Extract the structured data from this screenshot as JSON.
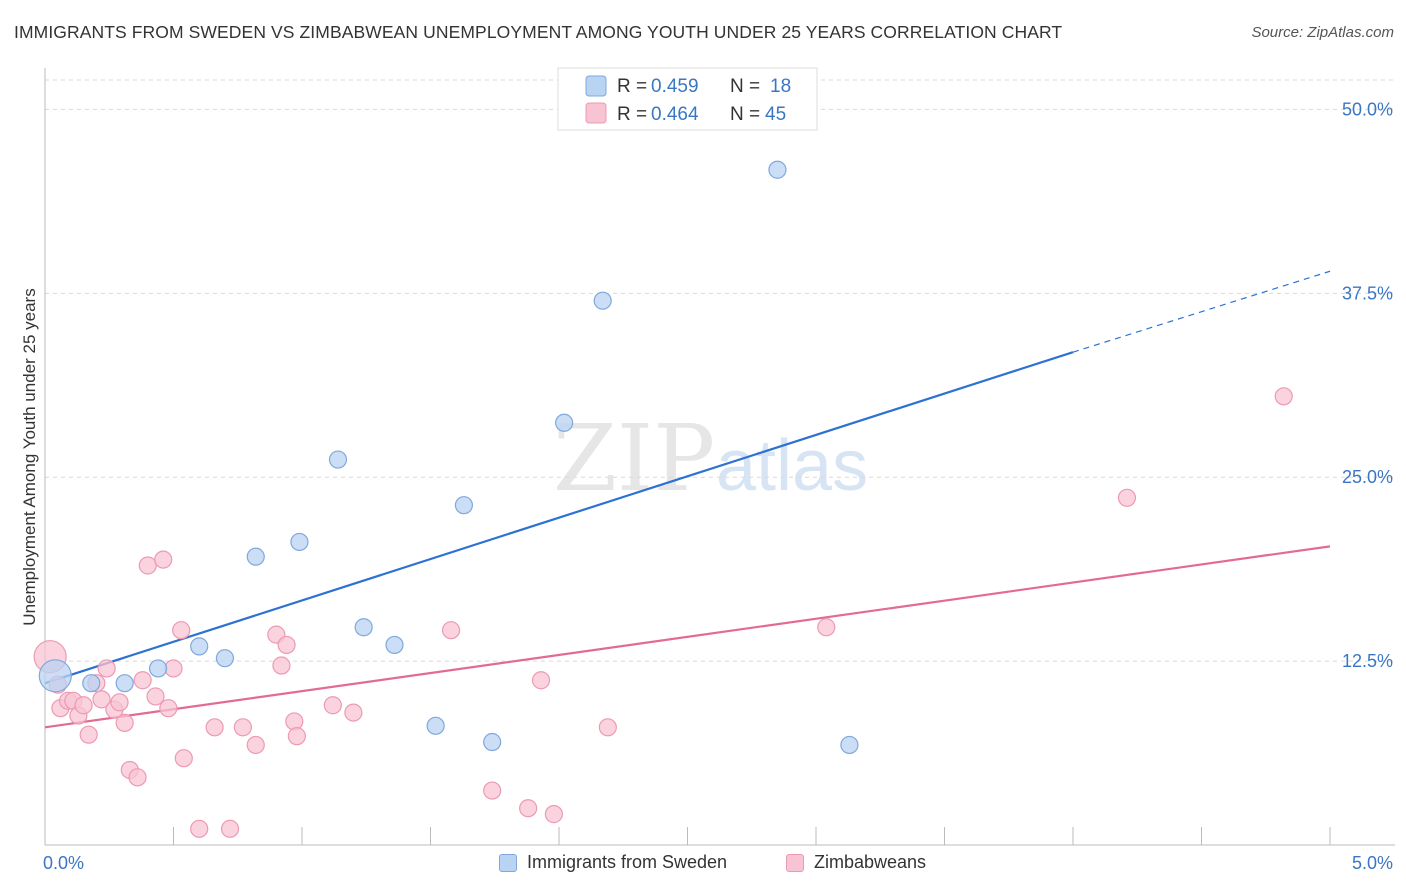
{
  "title": "IMMIGRANTS FROM SWEDEN VS ZIMBABWEAN UNEMPLOYMENT AMONG YOUTH UNDER 25 YEARS CORRELATION CHART",
  "source": "Source: ZipAtlas.com",
  "watermark": {
    "zip": "ZIP",
    "atlas": "atlas"
  },
  "colors": {
    "blue_fill": "#b9d3f3",
    "blue_stroke": "#7fa8dc",
    "blue_line": "#2d72d2",
    "pink_fill": "#f8c4d3",
    "pink_stroke": "#ec9ab4",
    "pink_line": "#e36a94",
    "value_text": "#3a76c4",
    "grid": "#d9d9d9"
  },
  "chart_data": {
    "type": "scatter",
    "title": "IMMIGRANTS FROM SWEDEN VS ZIMBABWEAN UNEMPLOYMENT AMONG YOUTH UNDER 25 YEARS CORRELATION CHART",
    "xlabel": "",
    "ylabel": "Unemployment Among Youth under 25 years",
    "xlim": [
      0,
      5
    ],
    "ylim": [
      0,
      52
    ],
    "x_tick_labels": [
      "0.0%",
      "5.0%"
    ],
    "y_ticks": [
      12.5,
      25.0,
      37.5,
      50.0
    ],
    "y_tick_labels": [
      "12.5%",
      "25.0%",
      "37.5%",
      "50.0%"
    ],
    "legend": {
      "r_label": "R =",
      "n_label": "N =",
      "entries": [
        {
          "r": "0.459",
          "n": "18"
        },
        {
          "r": "0.464",
          "n": "45"
        }
      ]
    },
    "series": [
      {
        "name": "Immigrants from Sweden",
        "color": "blue",
        "trend": {
          "x0": 0,
          "y0": 11.0,
          "x1": 4.0,
          "y1": 33.5,
          "dash_to_x": 5.0,
          "dash_to_y": 39.0
        },
        "points": [
          {
            "x": 0.04,
            "y": 11.5,
            "big": true
          },
          {
            "x": 0.18,
            "y": 11.0
          },
          {
            "x": 0.31,
            "y": 11.0
          },
          {
            "x": 0.44,
            "y": 12.0
          },
          {
            "x": 0.6,
            "y": 13.5
          },
          {
            "x": 0.7,
            "y": 12.7
          },
          {
            "x": 0.82,
            "y": 19.6
          },
          {
            "x": 0.99,
            "y": 20.6
          },
          {
            "x": 1.14,
            "y": 26.2
          },
          {
            "x": 1.24,
            "y": 14.8
          },
          {
            "x": 1.36,
            "y": 13.6
          },
          {
            "x": 1.52,
            "y": 8.1
          },
          {
            "x": 1.63,
            "y": 23.1
          },
          {
            "x": 1.74,
            "y": 7.0
          },
          {
            "x": 2.02,
            "y": 28.7
          },
          {
            "x": 2.17,
            "y": 37.0
          },
          {
            "x": 2.85,
            "y": 45.9
          },
          {
            "x": 3.13,
            "y": 6.8
          }
        ]
      },
      {
        "name": "Zimbabweans",
        "color": "pink",
        "trend": {
          "x0": 0,
          "y0": 8.0,
          "x1": 5.0,
          "y1": 20.3
        },
        "points": [
          {
            "x": 0.02,
            "y": 12.8,
            "big": true
          },
          {
            "x": 0.05,
            "y": 10.9
          },
          {
            "x": 0.06,
            "y": 9.3
          },
          {
            "x": 0.09,
            "y": 9.8
          },
          {
            "x": 0.11,
            "y": 9.8
          },
          {
            "x": 0.13,
            "y": 8.8
          },
          {
            "x": 0.15,
            "y": 9.5
          },
          {
            "x": 0.17,
            "y": 7.5
          },
          {
            "x": 0.2,
            "y": 11.0
          },
          {
            "x": 0.22,
            "y": 9.9
          },
          {
            "x": 0.24,
            "y": 12.0
          },
          {
            "x": 0.27,
            "y": 9.2
          },
          {
            "x": 0.29,
            "y": 9.7
          },
          {
            "x": 0.31,
            "y": 8.3
          },
          {
            "x": 0.33,
            "y": 5.1
          },
          {
            "x": 0.36,
            "y": 4.6
          },
          {
            "x": 0.38,
            "y": 11.2
          },
          {
            "x": 0.4,
            "y": 19.0
          },
          {
            "x": 0.43,
            "y": 10.1
          },
          {
            "x": 0.46,
            "y": 19.4
          },
          {
            "x": 0.48,
            "y": 9.3
          },
          {
            "x": 0.5,
            "y": 12.0
          },
          {
            "x": 0.53,
            "y": 14.6
          },
          {
            "x": 0.54,
            "y": 5.9
          },
          {
            "x": 0.6,
            "y": 1.1
          },
          {
            "x": 0.66,
            "y": 8.0
          },
          {
            "x": 0.72,
            "y": 1.1
          },
          {
            "x": 0.77,
            "y": 8.0
          },
          {
            "x": 0.82,
            "y": 6.8
          },
          {
            "x": 0.9,
            "y": 14.3
          },
          {
            "x": 0.92,
            "y": 12.2
          },
          {
            "x": 0.94,
            "y": 13.6
          },
          {
            "x": 0.97,
            "y": 8.4
          },
          {
            "x": 0.98,
            "y": 7.4
          },
          {
            "x": 1.12,
            "y": 9.5
          },
          {
            "x": 1.2,
            "y": 9.0
          },
          {
            "x": 1.58,
            "y": 14.6
          },
          {
            "x": 1.74,
            "y": 3.7
          },
          {
            "x": 1.88,
            "y": 2.5
          },
          {
            "x": 1.93,
            "y": 11.2
          },
          {
            "x": 1.98,
            "y": 2.1
          },
          {
            "x": 2.19,
            "y": 8.0
          },
          {
            "x": 3.04,
            "y": 14.8
          },
          {
            "x": 4.21,
            "y": 23.6
          },
          {
            "x": 4.82,
            "y": 30.5
          }
        ]
      }
    ]
  },
  "bottom_legend": [
    {
      "label": "Immigrants from Sweden"
    },
    {
      "label": "Zimbabweans"
    }
  ]
}
